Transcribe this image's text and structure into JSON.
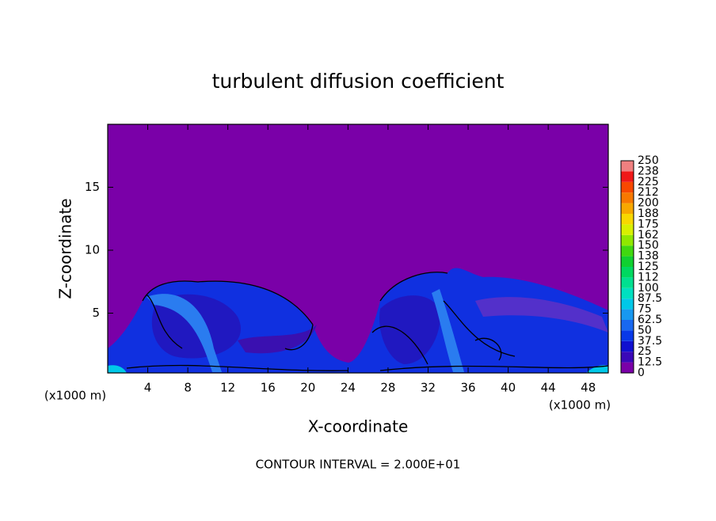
{
  "chart_data": {
    "type": "contour",
    "title": "turbulent diffusion coefficient",
    "xlabel": "X-coordinate",
    "ylabel": "Z-coordinate",
    "x_unit": "(x1000 m)",
    "footer": "CONTOUR INTERVAL = 2.000E+01",
    "xlim": [
      0,
      50
    ],
    "xticks": [
      4,
      8,
      12,
      16,
      20,
      24,
      28,
      32,
      36,
      40,
      44,
      48
    ],
    "ylim": [
      0.25,
      20
    ],
    "yticks": [
      5,
      10,
      15
    ],
    "colorbar": {
      "levels": [
        0,
        12.5,
        25,
        37.5,
        50,
        62.5,
        75,
        87.5,
        100,
        112,
        125,
        138,
        150,
        162,
        175,
        188,
        200,
        212,
        225,
        238,
        250
      ],
      "colors": [
        "#7a00a8",
        "#3a08b8",
        "#1010d0",
        "#0838e8",
        "#1868f0",
        "#1898f0",
        "#00c8e8",
        "#00e0c0",
        "#00e090",
        "#00d860",
        "#10d030",
        "#40d810",
        "#90e800",
        "#d8f000",
        "#f8d800",
        "#f8a800",
        "#f87800",
        "#f84800",
        "#f01818",
        "#f08080"
      ]
    }
  }
}
